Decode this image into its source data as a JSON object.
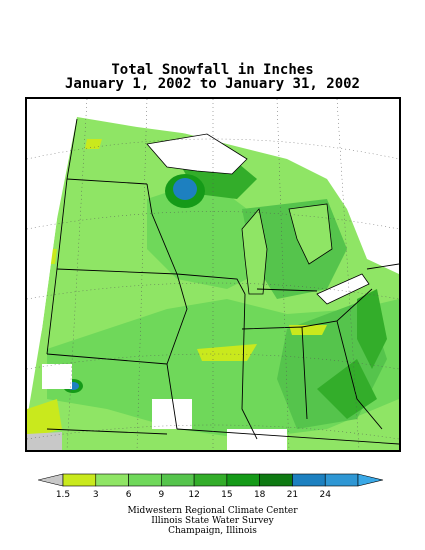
{
  "title": {
    "line1": "Total Snowfall in Inches",
    "line2": "January 1, 2002 to January 31, 2002"
  },
  "legend": {
    "colors": [
      "#c8c8c8",
      "#c9e91d",
      "#8fe565",
      "#6fd85a",
      "#55c44c",
      "#33ad2a",
      "#159a18",
      "#0e7a12",
      "#1d80c0",
      "#2f97d4",
      "#3aa8e6"
    ],
    "ticks": [
      "1.5",
      "3",
      "6",
      "9",
      "12",
      "15",
      "18",
      "21",
      "24"
    ]
  },
  "credits": {
    "line1": "Midwestern Regional Climate Center",
    "line2": "Illinois State Water Survey",
    "line3": "Champaign, Illinois"
  }
}
